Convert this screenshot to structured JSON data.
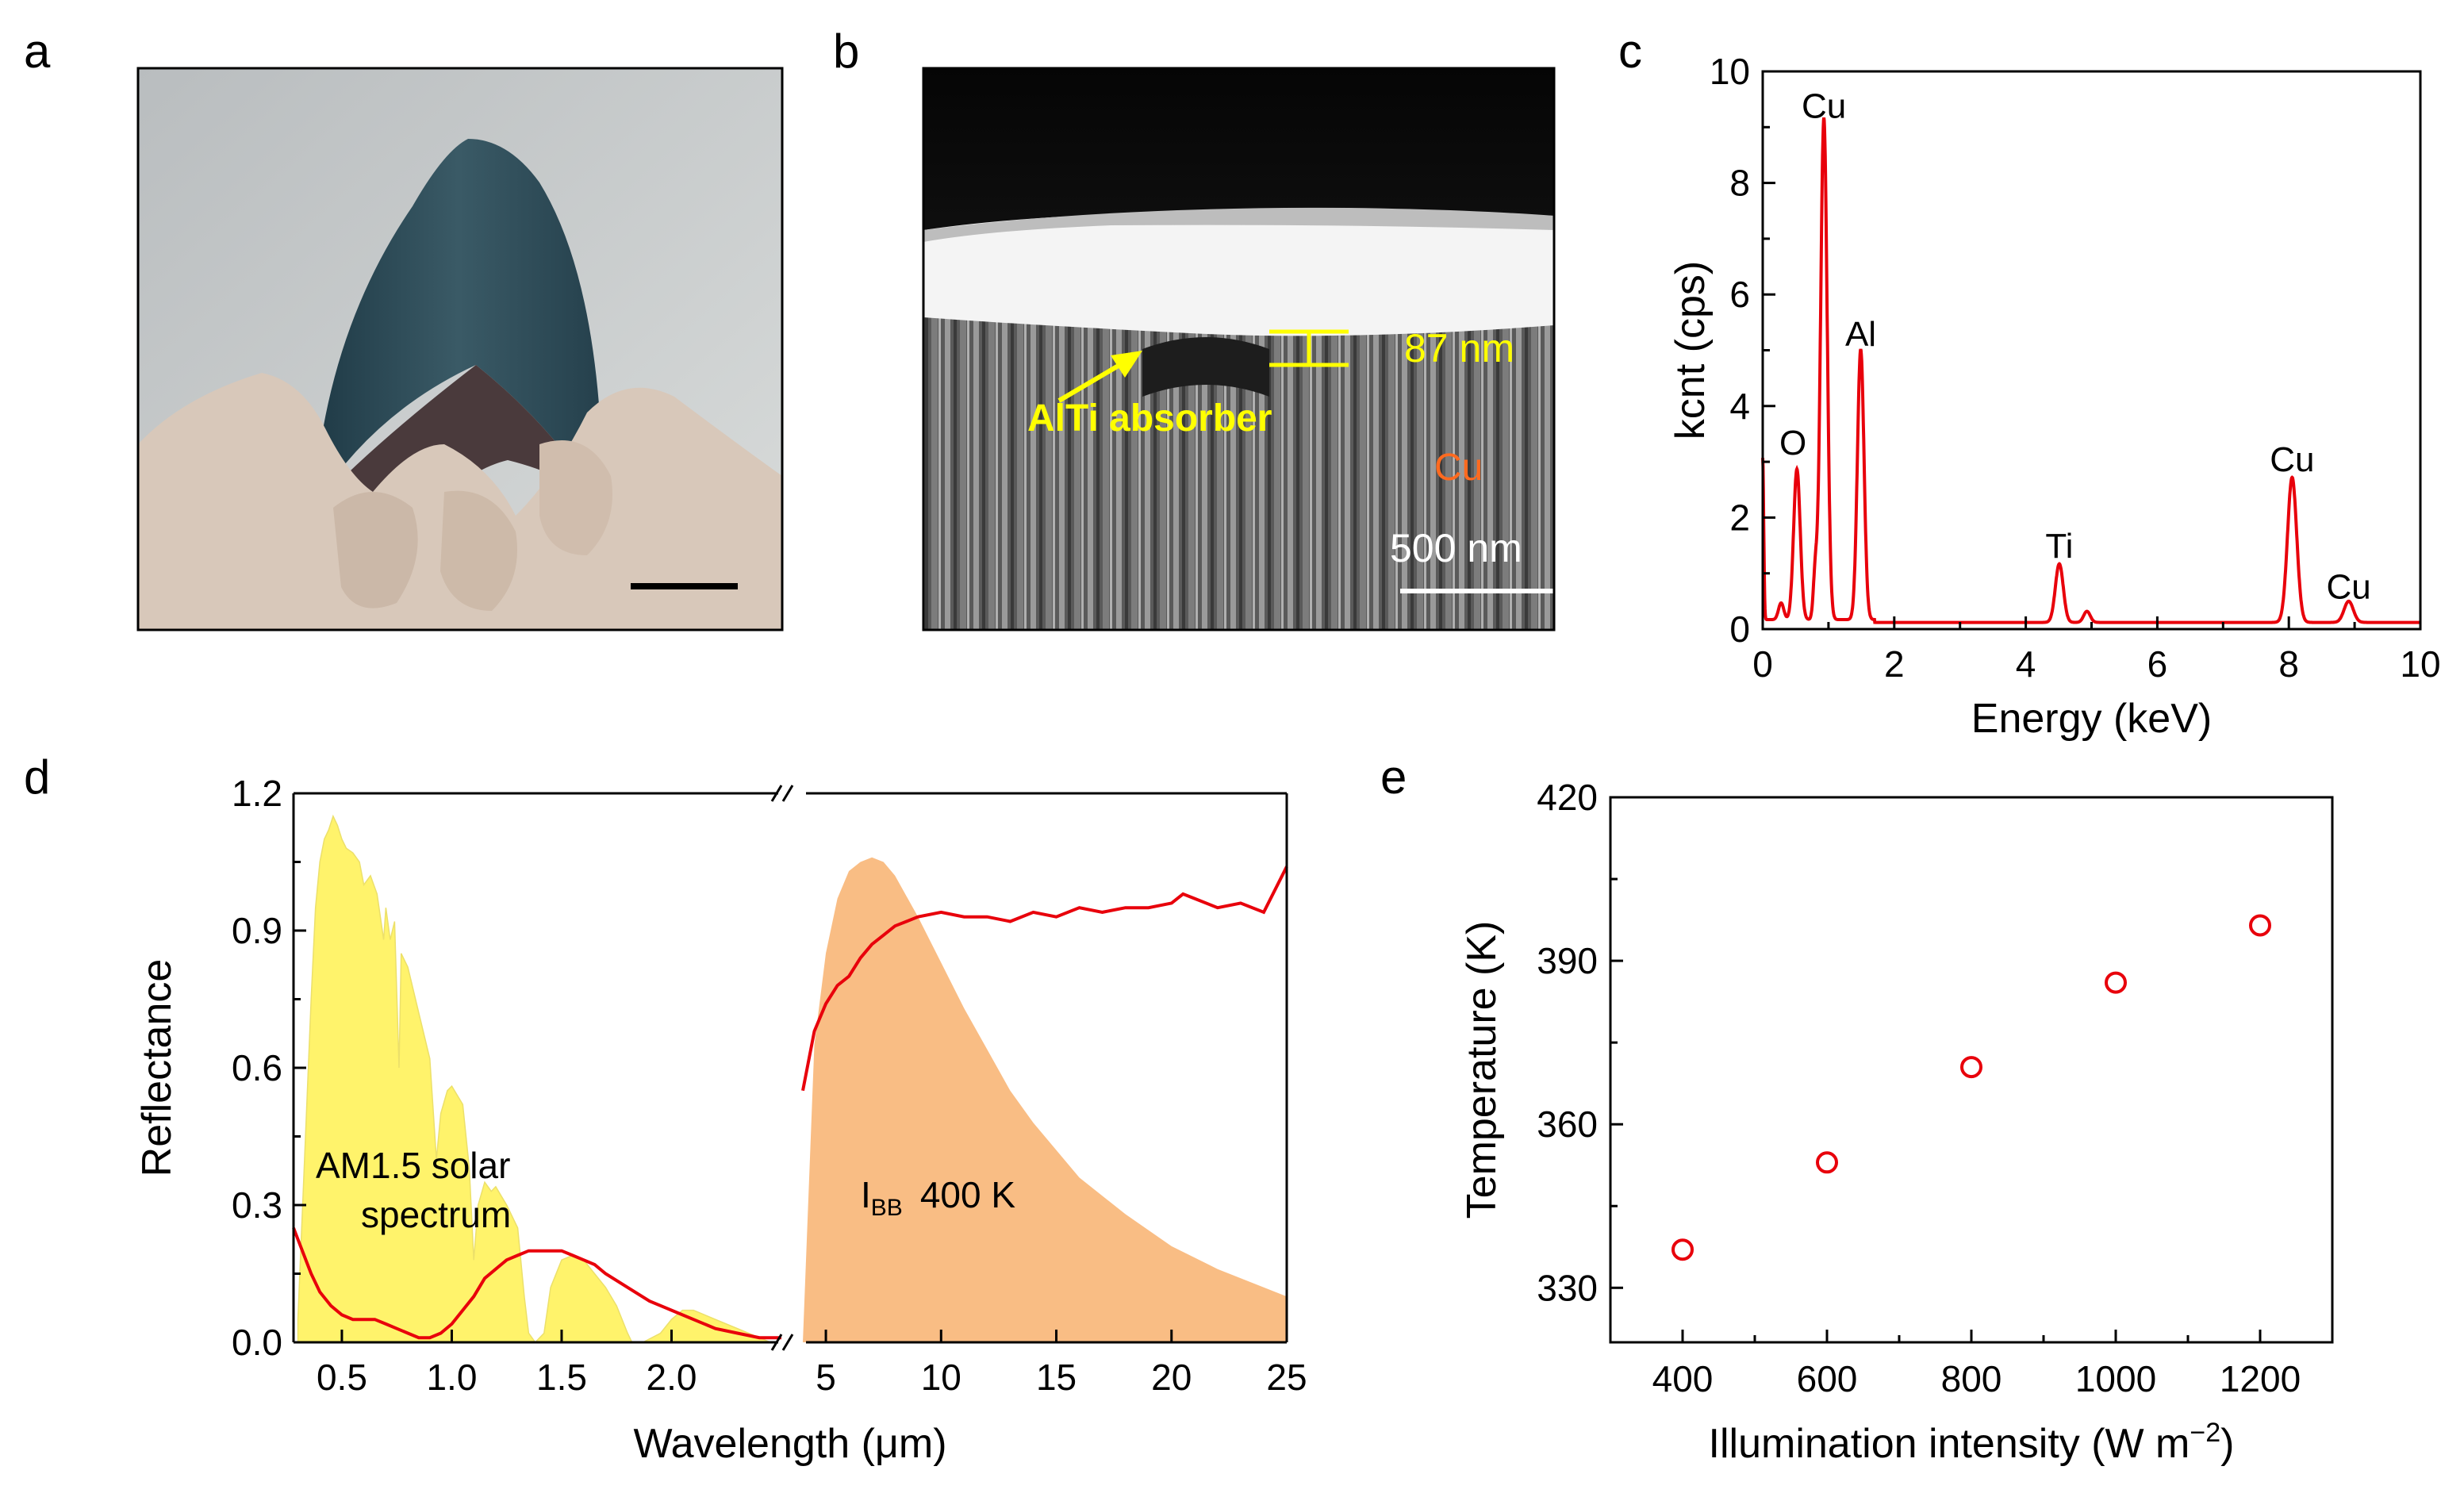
{
  "panel_letters": [
    "a",
    "b",
    "c",
    "d",
    "e"
  ],
  "panel_b": {
    "arrow_label": "AlTi absorber",
    "thickness_label": "87 nm",
    "substrate_label": "Cu",
    "scale_bar_label": "500 nm"
  },
  "chart_data": [
    {
      "panel": "c",
      "type": "line",
      "title": "",
      "xlabel": "Energy (keV)",
      "ylabel": "kcnt (cps)",
      "xlim": [
        0,
        10
      ],
      "ylim": [
        0,
        10
      ],
      "xticks": [
        0,
        2,
        4,
        6,
        8,
        10
      ],
      "yticks": [
        0,
        2,
        4,
        6,
        8,
        10
      ],
      "peaks": [
        {
          "label": "O",
          "x": 0.52,
          "y": 2.7,
          "width": 0.05
        },
        {
          "label": "Cu",
          "x": 0.93,
          "y": 9.0,
          "width": 0.05
        },
        {
          "label": "Al",
          "x": 1.49,
          "y": 4.85,
          "width": 0.05
        },
        {
          "label": "Ti",
          "x": 4.51,
          "y": 1.05,
          "width": 0.06
        },
        {
          "label": "Cu",
          "x": 8.05,
          "y": 2.6,
          "width": 0.07
        },
        {
          "label": "Cu",
          "x": 8.91,
          "y": 0.38,
          "width": 0.07
        }
      ],
      "minor_peaks": [
        {
          "x": 0.0,
          "y": 2.9,
          "width": 0.015
        },
        {
          "x": 0.28,
          "y": 0.3,
          "width": 0.04
        },
        {
          "x": 0.8,
          "y": 0.85,
          "width": 0.03
        },
        {
          "x": 4.93,
          "y": 0.2,
          "width": 0.05
        }
      ],
      "background_level": 0.12,
      "color": "#e8000b"
    },
    {
      "panel": "d",
      "type": "line",
      "xlabel": "Wavelength (μm)",
      "ylabel": "Reflectance",
      "ylim": [
        0,
        1.2
      ],
      "yticks": [
        "0.0",
        "0.3",
        "0.6",
        "0.9",
        "1.2"
      ],
      "broken_axis": true,
      "left_segment": {
        "xlim": [
          0.28,
          2.5
        ],
        "xticks": [
          "0.5",
          "1.0",
          "1.5",
          "2.0"
        ]
      },
      "right_segment": {
        "xlim": [
          4,
          25
        ],
        "xticks": [
          "5",
          "10",
          "15",
          "20",
          "25"
        ]
      },
      "solar_label_line1": "AM1.5 solar",
      "solar_label_line2": "spectrum",
      "blackbody_label_main": "I",
      "blackbody_label_sub": "BB",
      "blackbody_label_temp": "400 K",
      "solar_spectrum": {
        "x": [
          0.3,
          0.33,
          0.36,
          0.38,
          0.4,
          0.42,
          0.44,
          0.46,
          0.48,
          0.5,
          0.52,
          0.55,
          0.58,
          0.6,
          0.63,
          0.66,
          0.69,
          0.7,
          0.72,
          0.74,
          0.76,
          0.77,
          0.8,
          0.85,
          0.9,
          0.93,
          0.95,
          0.98,
          1.0,
          1.05,
          1.08,
          1.1,
          1.12,
          1.15,
          1.18,
          1.2,
          1.25,
          1.3,
          1.33,
          1.35,
          1.38,
          1.42,
          1.45,
          1.5,
          1.55,
          1.6,
          1.65,
          1.7,
          1.75,
          1.8,
          1.82,
          1.87,
          1.95,
          2.0,
          2.05,
          2.1,
          2.2,
          2.3,
          2.4,
          2.45
        ],
        "y": [
          0.05,
          0.4,
          0.75,
          0.95,
          1.05,
          1.1,
          1.12,
          1.15,
          1.13,
          1.1,
          1.08,
          1.07,
          1.05,
          1.0,
          1.02,
          0.98,
          0.88,
          0.95,
          0.88,
          0.92,
          0.6,
          0.85,
          0.82,
          0.72,
          0.62,
          0.4,
          0.5,
          0.55,
          0.56,
          0.52,
          0.38,
          0.18,
          0.3,
          0.35,
          0.33,
          0.34,
          0.3,
          0.25,
          0.1,
          0.02,
          0.0,
          0.02,
          0.12,
          0.18,
          0.19,
          0.18,
          0.15,
          0.12,
          0.08,
          0.02,
          0.0,
          0.0,
          0.02,
          0.05,
          0.07,
          0.07,
          0.05,
          0.03,
          0.01,
          0.0
        ],
        "color": "#fff36b"
      },
      "blackbody_400K": {
        "x": [
          4,
          4.5,
          5,
          5.5,
          6,
          6.5,
          7,
          7.5,
          8,
          9,
          10,
          11,
          12,
          13,
          14,
          15,
          16,
          18,
          20,
          22,
          25
        ],
        "y": [
          0.0,
          0.65,
          0.85,
          0.97,
          1.03,
          1.05,
          1.06,
          1.05,
          1.02,
          0.93,
          0.83,
          0.73,
          0.64,
          0.55,
          0.48,
          0.42,
          0.36,
          0.28,
          0.21,
          0.16,
          0.1
        ],
        "color": "#f9bd84"
      },
      "reflectance_left": {
        "x": [
          0.28,
          0.32,
          0.36,
          0.4,
          0.45,
          0.5,
          0.55,
          0.6,
          0.65,
          0.7,
          0.75,
          0.8,
          0.85,
          0.9,
          0.95,
          1.0,
          1.05,
          1.1,
          1.15,
          1.2,
          1.25,
          1.3,
          1.35,
          1.4,
          1.45,
          1.5,
          1.55,
          1.6,
          1.65,
          1.7,
          1.8,
          1.9,
          2.0,
          2.1,
          2.2,
          2.3,
          2.4,
          2.5
        ],
        "y": [
          0.25,
          0.2,
          0.15,
          0.11,
          0.08,
          0.06,
          0.05,
          0.05,
          0.05,
          0.04,
          0.03,
          0.02,
          0.01,
          0.01,
          0.02,
          0.04,
          0.07,
          0.1,
          0.14,
          0.16,
          0.18,
          0.19,
          0.2,
          0.2,
          0.2,
          0.2,
          0.19,
          0.18,
          0.17,
          0.15,
          0.12,
          0.09,
          0.07,
          0.05,
          0.03,
          0.02,
          0.01,
          0.01
        ]
      },
      "reflectance_right": {
        "x": [
          4,
          4.5,
          5,
          5.5,
          6,
          6.5,
          7,
          7.5,
          8,
          8.5,
          9,
          10,
          11,
          12,
          13,
          14,
          15,
          16,
          17,
          18,
          19,
          20,
          20.5,
          21,
          22,
          23,
          24,
          25
        ],
        "y": [
          0.55,
          0.68,
          0.74,
          0.78,
          0.8,
          0.84,
          0.87,
          0.89,
          0.91,
          0.92,
          0.93,
          0.94,
          0.93,
          0.93,
          0.92,
          0.94,
          0.93,
          0.95,
          0.94,
          0.95,
          0.95,
          0.96,
          0.98,
          0.97,
          0.95,
          0.96,
          0.94,
          1.04
        ]
      },
      "line_color": "#e8000b"
    },
    {
      "panel": "e",
      "type": "scatter",
      "xlabel_main": "Illumination intensity (W m",
      "xlabel_sup": "−2",
      "xlabel_end": ")",
      "ylabel": "Temperature (K)",
      "xlim": [
        300,
        1300
      ],
      "ylim": [
        320,
        420
      ],
      "xticks": [
        400,
        600,
        800,
        1000,
        1200
      ],
      "yticks": [
        330,
        360,
        390,
        420
      ],
      "x": [
        400,
        600,
        800,
        1000,
        1200
      ],
      "y": [
        337,
        353,
        370.5,
        386,
        396.5
      ],
      "color": "#e8000b"
    }
  ]
}
